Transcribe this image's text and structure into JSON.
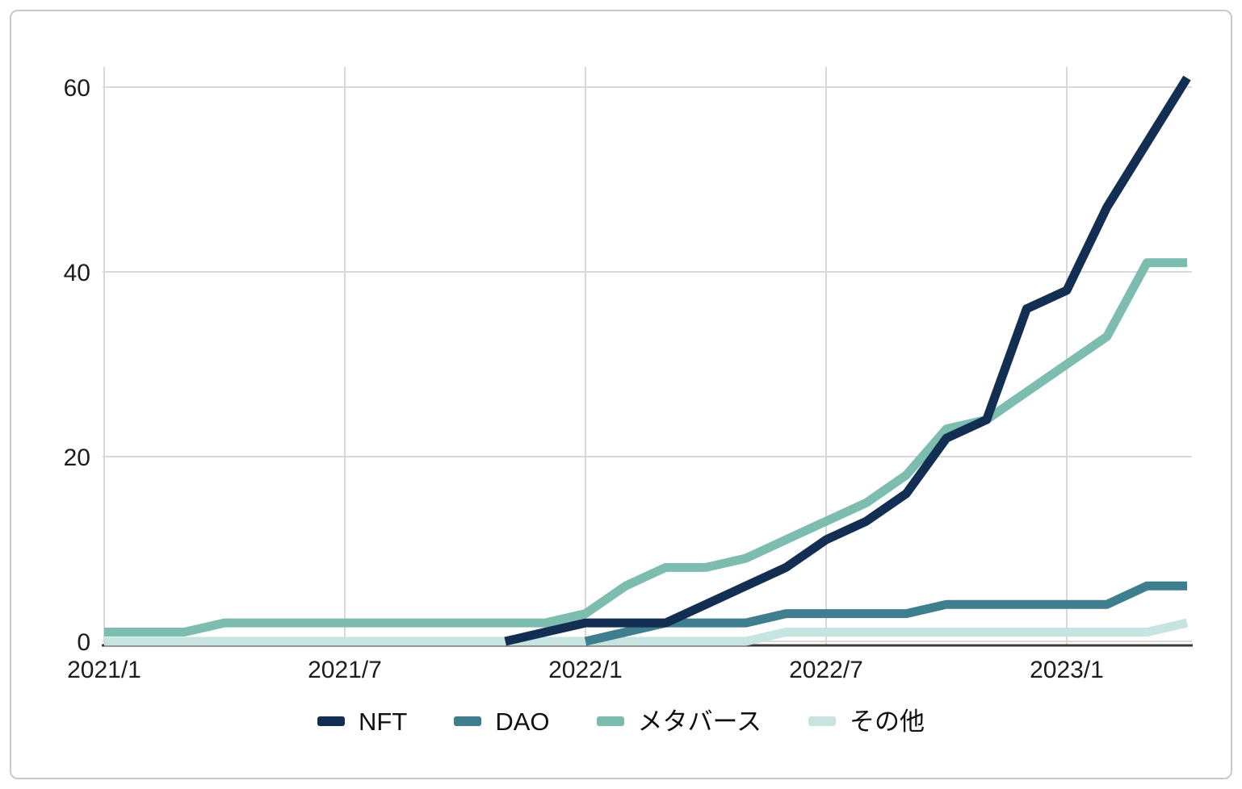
{
  "chart_data": {
    "type": "line",
    "x": [
      "2021/1",
      "2021/2",
      "2021/3",
      "2021/4",
      "2021/5",
      "2021/6",
      "2021/7",
      "2021/8",
      "2021/9",
      "2021/10",
      "2021/11",
      "2021/12",
      "2022/1",
      "2022/2",
      "2022/3",
      "2022/4",
      "2022/5",
      "2022/6",
      "2022/7",
      "2022/8",
      "2022/9",
      "2022/10",
      "2022/11",
      "2022/12",
      "2023/1",
      "2023/2",
      "2023/3",
      "2023/4"
    ],
    "x_tick_labels": [
      "2021/1",
      "2021/7",
      "2022/1",
      "2022/7",
      "2023/1"
    ],
    "x_tick_indices": [
      0,
      6,
      12,
      18,
      24
    ],
    "y_ticks": [
      0,
      20,
      40,
      60
    ],
    "ylim": [
      0,
      62
    ],
    "grid": true,
    "legend_position": "bottom-center",
    "title": "",
    "xlabel": "",
    "ylabel": "",
    "series": [
      {
        "id": "nft",
        "name": "NFT",
        "color": "#132e53",
        "values": [
          null,
          null,
          null,
          null,
          null,
          null,
          null,
          null,
          null,
          null,
          0,
          1,
          2,
          2,
          2,
          4,
          6,
          8,
          11,
          13,
          16,
          22,
          24,
          36,
          38,
          47,
          54,
          61
        ]
      },
      {
        "id": "dao",
        "name": "DAO",
        "color": "#3e7e8e",
        "values": [
          null,
          null,
          null,
          null,
          null,
          null,
          null,
          null,
          null,
          null,
          null,
          null,
          0,
          1,
          2,
          2,
          2,
          3,
          3,
          3,
          3,
          4,
          4,
          4,
          4,
          4,
          6,
          6
        ]
      },
      {
        "id": "metaverse",
        "name": "メタバース",
        "color": "#7cbdb0",
        "values": [
          1,
          1,
          1,
          2,
          2,
          2,
          2,
          2,
          2,
          2,
          2,
          2,
          3,
          6,
          8,
          8,
          9,
          11,
          13,
          15,
          18,
          23,
          24,
          27,
          30,
          33,
          41,
          41
        ]
      },
      {
        "id": "other",
        "name": "その他",
        "color": "#c7e4e0",
        "values": [
          0,
          0,
          0,
          0,
          0,
          0,
          0,
          0,
          0,
          0,
          0,
          0,
          0,
          0,
          0,
          0,
          0,
          1,
          1,
          1,
          1,
          1,
          1,
          1,
          1,
          1,
          1,
          2
        ]
      }
    ]
  },
  "colors": {
    "background": "#ffffff",
    "grid": "#d9d9d9",
    "axis_bottom": "#3b3b3b",
    "tick_text": "#1c1c1c",
    "card_border": "#c9c9c9"
  }
}
